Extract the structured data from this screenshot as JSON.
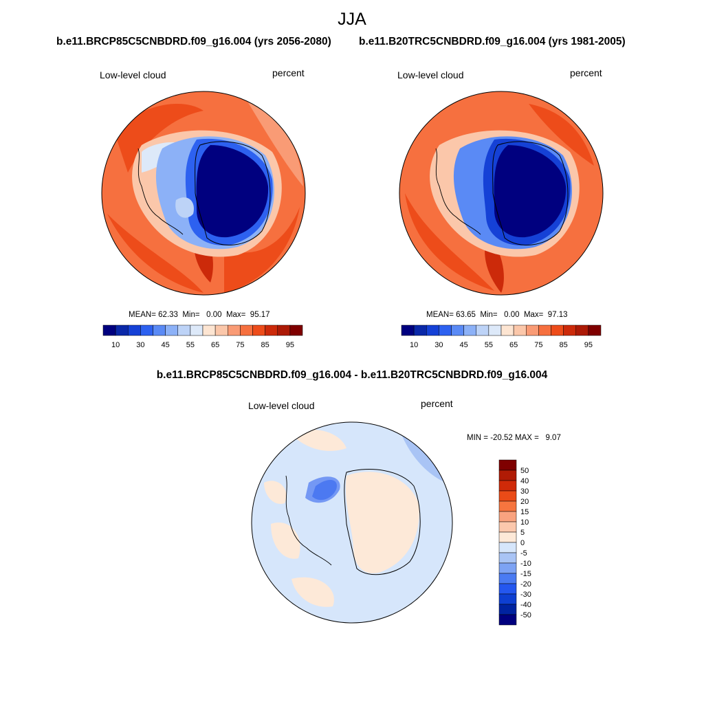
{
  "figure": {
    "title": "JJA"
  },
  "panels": [
    {
      "case_title": "b.e11.BRCP85C5CNBDRD.f09_g16.004 (yrs 2056-2080)",
      "variable": "Low-level cloud",
      "units": "percent",
      "stats": {
        "mean_label": "MEAN=",
        "mean": "62.33",
        "min_label": "Min=",
        "min": "0.00",
        "max_label": "Max=",
        "max": "95.17"
      },
      "colorbar": {
        "labels": [
          "10",
          "30",
          "45",
          "55",
          "65",
          "75",
          "85",
          "95"
        ]
      }
    },
    {
      "case_title": "b.e11.B20TRC5CNBDRD.f09_g16.004 (yrs 1981-2005)",
      "variable": "Low-level cloud",
      "units": "percent",
      "stats": {
        "mean_label": "MEAN=",
        "mean": "63.65",
        "min_label": "Min=",
        "min": "0.00",
        "max_label": "Max=",
        "max": "97.13"
      },
      "colorbar": {
        "labels": [
          "10",
          "30",
          "45",
          "55",
          "65",
          "75",
          "85",
          "95"
        ]
      }
    }
  ],
  "diff": {
    "title": "b.e11.BRCP85C5CNBDRD.f09_g16.004 - b.e11.B20TRC5CNBDRD.f09_g16.004",
    "variable": "Low-level cloud",
    "units": "percent",
    "stats": {
      "min_label": "MIN =",
      "min": "-20.52",
      "max_label": "MAX =",
      "max": "9.07"
    },
    "colorbar": {
      "labels": [
        "50",
        "40",
        "30",
        "20",
        "15",
        "10",
        "5",
        "0",
        "-5",
        "-10",
        "-15",
        "-20",
        "-30",
        "-40",
        "-50"
      ]
    }
  },
  "colors": {
    "abs_scale": [
      "#00007f",
      "#0a28a8",
      "#1541d6",
      "#2d61f0",
      "#5a8af5",
      "#8cb1f7",
      "#bdd3f7",
      "#dde9f9",
      "#fde5d2",
      "#fbc7aa",
      "#f99b75",
      "#f6703f",
      "#ed4c1a",
      "#cc2a0a",
      "#ac1a06",
      "#7f0000"
    ],
    "diff_scale": [
      "#00007f",
      "#0023a0",
      "#0e3fd1",
      "#2457ef",
      "#4a7bf2",
      "#7da3f4",
      "#a9c4f5",
      "#d6e6fb",
      "#fde9d8",
      "#fbc8ad",
      "#f9a37f",
      "#f6753f",
      "#ea4b17",
      "#d02a08",
      "#b01b05",
      "#7f0000"
    ],
    "coast": "#000000"
  }
}
